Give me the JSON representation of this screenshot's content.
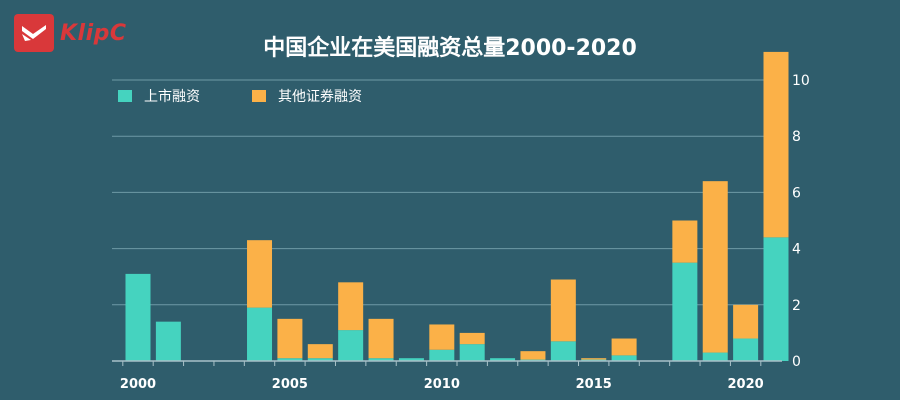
{
  "logo": {
    "text": "KlipC",
    "brand_color": "#d9383a"
  },
  "chart_data": {
    "type": "bar",
    "stacked": true,
    "title": "中国企业在美国融资总量2000-2020",
    "xlabel": "",
    "ylabel": "",
    "categories": [
      2000,
      2001,
      2002,
      2003,
      2004,
      2005,
      2006,
      2007,
      2008,
      2009,
      2010,
      2011,
      2012,
      2013,
      2014,
      2015,
      2016,
      2017,
      2018,
      2019,
      2020,
      2021
    ],
    "series": [
      {
        "name": "上市融资",
        "color": "#45d3bf",
        "values": [
          3.1,
          1.4,
          0,
          0,
          1.9,
          0.1,
          0.1,
          1.1,
          0.1,
          0.1,
          0.4,
          0.6,
          0.1,
          0.05,
          0.7,
          0.05,
          0.2,
          0,
          3.5,
          0.3,
          0.8,
          4.4
        ]
      },
      {
        "name": "其他证券融资",
        "color": "#fbb148",
        "values": [
          0,
          0,
          0,
          0,
          2.4,
          1.4,
          0.5,
          1.7,
          1.4,
          0,
          0.9,
          0.4,
          0,
          0.3,
          2.2,
          0.05,
          0.6,
          0,
          1.5,
          6.1,
          1.2,
          6.6
        ]
      }
    ],
    "x_ticks": [
      "2000",
      "2005",
      "2010",
      "2015",
      "2020"
    ],
    "x_tick_years": [
      2000,
      2005,
      2010,
      2015,
      2020
    ],
    "y_ticks": [
      "0",
      "2",
      "4",
      "6",
      "8",
      "10"
    ],
    "ylim": [
      0,
      10
    ],
    "y_axis_side": "right",
    "grid": true,
    "legend_position": "top-left"
  }
}
